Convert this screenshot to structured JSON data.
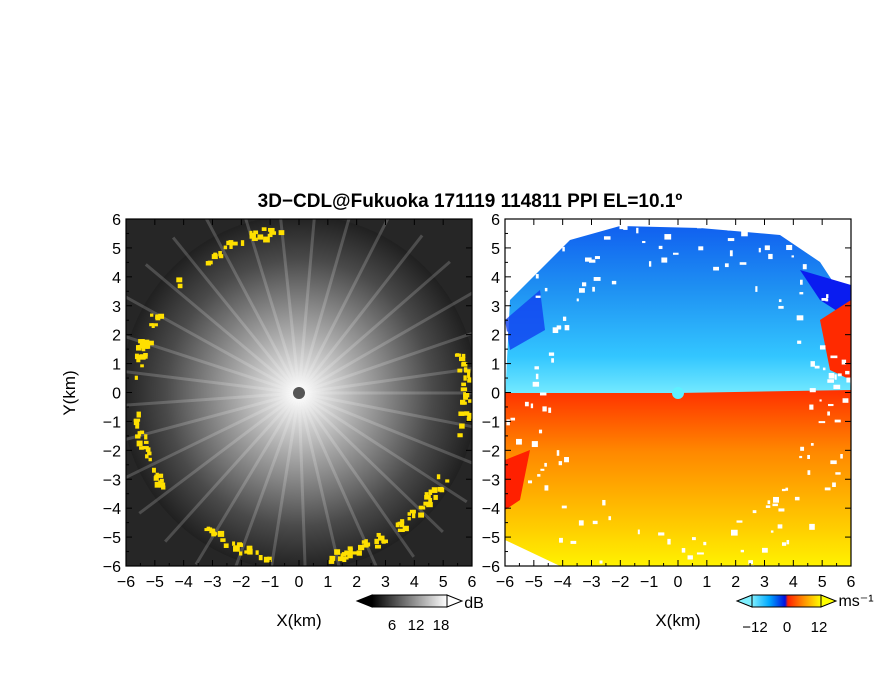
{
  "title": "3D−CDL@Fukuoka 171119 114811 PPI EL=10.1º",
  "chart_data": [
    {
      "type": "heatmap",
      "panel": "left",
      "description_of_field": "SNR (grayscale) with yellow high-return echoes near the edge",
      "xlabel": "X(km)",
      "ylabel": "Y(km)",
      "xlim": [
        -6,
        6
      ],
      "ylim": [
        -6,
        6
      ],
      "x_ticks": [
        "−6",
        "−5",
        "−4",
        "−3",
        "−2",
        "−1",
        "0",
        "1",
        "2",
        "3",
        "4",
        "5",
        "6"
      ],
      "y_ticks": [
        "−6",
        "−5",
        "−4",
        "−3",
        "−2",
        "−1",
        "0",
        "1",
        "2",
        "3",
        "4",
        "5",
        "6"
      ],
      "colorbar": {
        "unit": "dB",
        "ticks": [
          "6",
          "12",
          "18"
        ],
        "colors": [
          "#000000",
          "#ffffff"
        ]
      },
      "grid": false
    },
    {
      "type": "heatmap",
      "panel": "right",
      "description_of_field": "Doppler radial velocity",
      "xlabel": "X(km)",
      "ylabel": "",
      "xlim": [
        -6,
        6
      ],
      "ylim": [
        -6,
        6
      ],
      "x_ticks": [
        "−6",
        "−5",
        "−4",
        "−3",
        "−2",
        "−1",
        "0",
        "1",
        "2",
        "3",
        "4",
        "5",
        "6"
      ],
      "y_ticks": [
        "−6",
        "−5",
        "−4",
        "−3",
        "−2",
        "−1",
        "0",
        "1",
        "2",
        "3",
        "4",
        "5",
        "6"
      ],
      "colorbar": {
        "unit": "ms⁻¹",
        "ticks": [
          "−12",
          "0",
          "12"
        ],
        "colors": [
          "#0010e0",
          "#00b0ff",
          "#7ff0ff",
          "#ff2000",
          "#ff9000",
          "#ffff00"
        ]
      },
      "grid": false
    }
  ],
  "colors": {
    "left_background": "#262626",
    "left_center": "#e8e8e8",
    "echo_yellow": "#ffe000",
    "vel_blue_dark": "#0a1cf0",
    "vel_blue": "#1f86f0",
    "vel_cyan": "#6fe0ff",
    "vel_red": "#ff2a00",
    "vel_orange": "#ff8a00",
    "vel_yellow": "#fff000"
  }
}
